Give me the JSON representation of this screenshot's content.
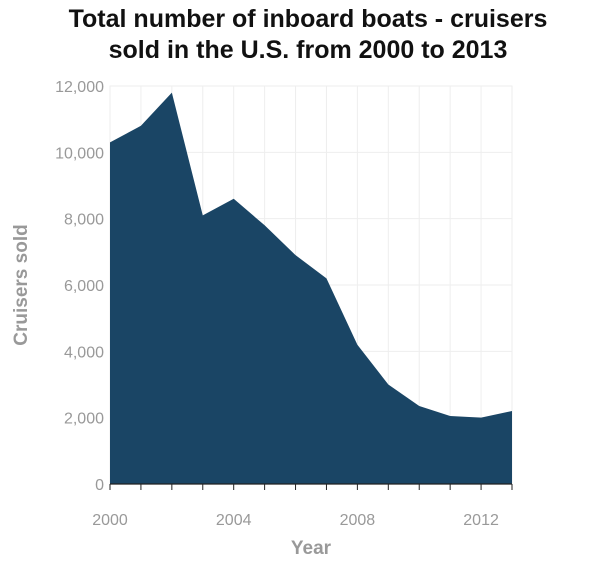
{
  "title_lines": [
    "Total number of inboard boats - cruisers",
    "sold in the U.S. from 2000 to 2013"
  ],
  "colors": {
    "area_fill": "#1a4565",
    "grid": "#eeeeee",
    "tick_text": "#999999",
    "title_text": "#111111"
  },
  "chart_data": {
    "type": "area",
    "title": "Total number of inboard boats - cruisers sold in the U.S. from 2000 to 2013",
    "xlabel": "Year",
    "ylabel": "Cruisers sold",
    "xlim": [
      2000,
      2013
    ],
    "ylim": [
      0,
      12000
    ],
    "x_ticks": [
      2000,
      2004,
      2008,
      2012
    ],
    "y_ticks": [
      0,
      2000,
      4000,
      6000,
      8000,
      10000,
      12000
    ],
    "y_tick_labels": [
      "0",
      "2,000",
      "4,000",
      "6,000",
      "8,000",
      "10,000",
      "12,000"
    ],
    "grid": true,
    "legend": "none",
    "x": [
      2000,
      2001,
      2002,
      2003,
      2004,
      2005,
      2006,
      2007,
      2008,
      2009,
      2010,
      2011,
      2012,
      2013
    ],
    "values": [
      10300,
      10800,
      11800,
      8100,
      8600,
      7800,
      6900,
      6200,
      4200,
      3000,
      2350,
      2050,
      2000,
      2200
    ]
  }
}
